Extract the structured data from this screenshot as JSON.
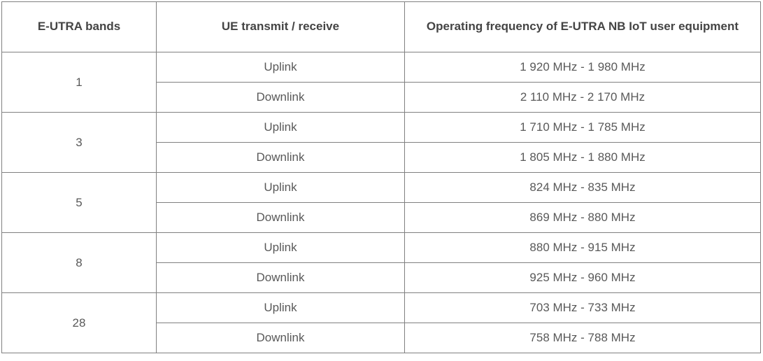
{
  "table": {
    "headers": [
      "E-UTRA bands",
      "UE transmit / receive",
      "Operating frequency of E-UTRA NB IoT user equipment"
    ],
    "labels": {
      "uplink": "Uplink",
      "downlink": "Downlink"
    },
    "bands": [
      {
        "band": "1",
        "uplink": "1 920 MHz - 1 980 MHz",
        "downlink": "2 110 MHz - 2 170 MHz"
      },
      {
        "band": "3",
        "uplink": "1 710 MHz - 1 785 MHz",
        "downlink": "1 805 MHz - 1 880 MHz"
      },
      {
        "band": "5",
        "uplink": "824 MHz - 835 MHz",
        "downlink": "869 MHz - 880 MHz"
      },
      {
        "band": "8",
        "uplink": "880 MHz - 915 MHz",
        "downlink": "925 MHz - 960 MHz"
      },
      {
        "band": "28",
        "uplink": "703 MHz - 733 MHz",
        "downlink": "758 MHz - 788 MHz"
      }
    ],
    "colors": {
      "border": "#808080",
      "header_text": "#444444",
      "body_text": "#595959",
      "background": "#ffffff"
    }
  }
}
